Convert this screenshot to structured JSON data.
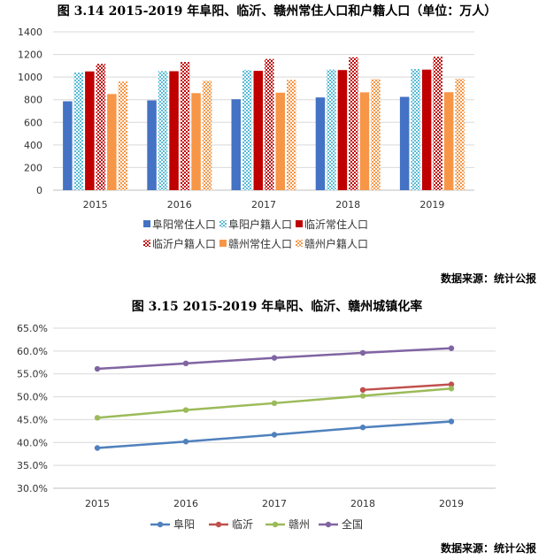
{
  "source_text_1": "数据来源：统计公报",
  "source_text_2": "数据来源：统计公报",
  "chart_data": [
    {
      "type": "bar",
      "title": "图 3.14 2015-2019 年阜阳、临沂、赣州常住人口和户籍人口（单位：万人）",
      "categories": [
        "2015",
        "2016",
        "2017",
        "2018",
        "2019"
      ],
      "ylim": [
        0,
        1400
      ],
      "yticks": [
        "0",
        "200",
        "400",
        "600",
        "800",
        "1000",
        "1200",
        "1400"
      ],
      "grid": true,
      "legend_position": "bottom",
      "series": [
        {
          "name": "阜阳常住人口",
          "values": [
            786,
            794,
            804,
            820,
            825
          ],
          "color": "#4472C4",
          "pattern": "solid"
        },
        {
          "name": "阜阳户籍人口",
          "values": [
            1040,
            1053,
            1062,
            1066,
            1072
          ],
          "color": "#5BBCD6",
          "pattern": "dots"
        },
        {
          "name": "临沂常住人口",
          "values": [
            1050,
            1052,
            1055,
            1062,
            1066
          ],
          "color": "#C00000",
          "pattern": "solid"
        },
        {
          "name": "临沂户籍人口",
          "values": [
            1117,
            1133,
            1160,
            1175,
            1180
          ],
          "color": "#C00000",
          "pattern": "checker"
        },
        {
          "name": "赣州常住人口",
          "values": [
            850,
            858,
            862,
            865,
            866
          ],
          "color": "#F79646",
          "pattern": "solid"
        },
        {
          "name": "赣州户籍人口",
          "values": [
            960,
            967,
            975,
            982,
            985
          ],
          "color": "#F79646",
          "pattern": "checker"
        }
      ]
    },
    {
      "type": "line",
      "title": "图 3.15 2015-2019 年阜阳、临沂、赣州城镇化率",
      "x": [
        "2015",
        "2016",
        "2017",
        "2018",
        "2019"
      ],
      "ylim": [
        30.0,
        65.0
      ],
      "yticks": [
        "30.0%",
        "35.0%",
        "40.0%",
        "45.0%",
        "50.0%",
        "55.0%",
        "60.0%",
        "65.0%"
      ],
      "grid": true,
      "legend_position": "bottom",
      "series": [
        {
          "name": "阜阳",
          "values": [
            38.8,
            40.2,
            41.7,
            43.3,
            44.6
          ],
          "color": "#4F81BD"
        },
        {
          "name": "临沂",
          "values": [
            null,
            null,
            null,
            51.5,
            52.7
          ],
          "color": "#C0504D"
        },
        {
          "name": "赣州",
          "values": [
            45.4,
            47.1,
            48.6,
            50.2,
            51.8
          ],
          "color": "#9BBB59"
        },
        {
          "name": "全国",
          "values": [
            56.1,
            57.3,
            58.5,
            59.6,
            60.6
          ],
          "color": "#8064A2"
        }
      ]
    }
  ]
}
